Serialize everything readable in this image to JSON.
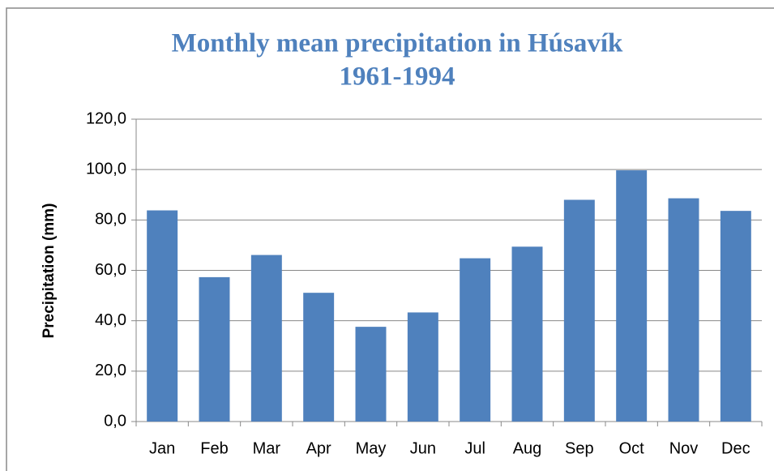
{
  "chart_data": {
    "type": "bar",
    "title": "Monthly mean precipitation in Húsavík",
    "subtitle": "1961-1994",
    "y_label": "Precipitation (mm)",
    "categories": [
      "Jan",
      "Feb",
      "Mar",
      "Apr",
      "May",
      "Jun",
      "Jul",
      "Aug",
      "Sep",
      "Oct",
      "Nov",
      "Dec"
    ],
    "values": [
      83.8,
      57.3,
      66.1,
      51.1,
      37.6,
      43.3,
      64.8,
      69.4,
      88.0,
      99.7,
      88.6,
      83.6
    ],
    "color": "#4f81bd",
    "ylim": [
      0,
      120
    ],
    "yticks": [
      {
        "value": 0,
        "label": "0,0"
      },
      {
        "value": 20,
        "label": "20,0"
      },
      {
        "value": 40,
        "label": "40,0"
      },
      {
        "value": 60,
        "label": "60,0"
      },
      {
        "value": 80,
        "label": "80,0"
      },
      {
        "value": 100,
        "label": "100,0"
      },
      {
        "value": 120,
        "label": "120,0"
      }
    ],
    "grid": true
  }
}
